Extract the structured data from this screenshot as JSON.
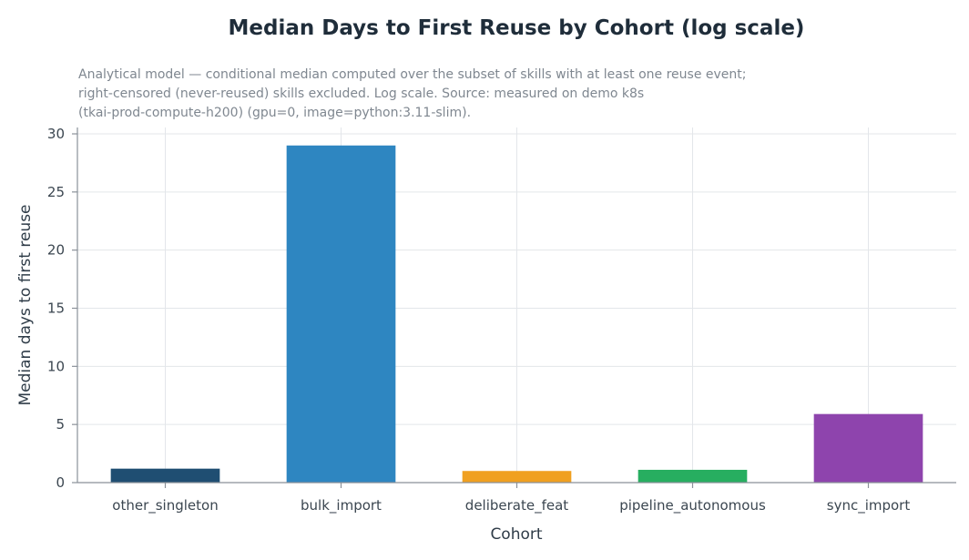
{
  "chart_data": {
    "type": "bar",
    "title": "Median Days to First Reuse by Cohort (log scale)",
    "subtitle_lines": [
      "Analytical model — conditional median computed over the subset of skills with at least one reuse event;",
      "right-censored (never-reused) skills excluded. Log scale. Source: measured on demo k8s",
      "(tkai-prod-compute-h200) (gpu=0, image=python:3.11-slim)."
    ],
    "xlabel": "Cohort",
    "ylabel": "Median days to first reuse",
    "categories": [
      "other_singleton",
      "bulk_import",
      "deliberate_feat",
      "pipeline_autonomous",
      "sync_import"
    ],
    "values": [
      1.2,
      29.0,
      1.0,
      1.1,
      5.9
    ],
    "colors": [
      "#1f4e72",
      "#2e86c1",
      "#f0a020",
      "#27ae60",
      "#8e44ad"
    ],
    "ylim": [
      0,
      30
    ],
    "yticks": [
      "0",
      "5",
      "10",
      "15",
      "20",
      "25",
      "30"
    ],
    "grid": true
  }
}
